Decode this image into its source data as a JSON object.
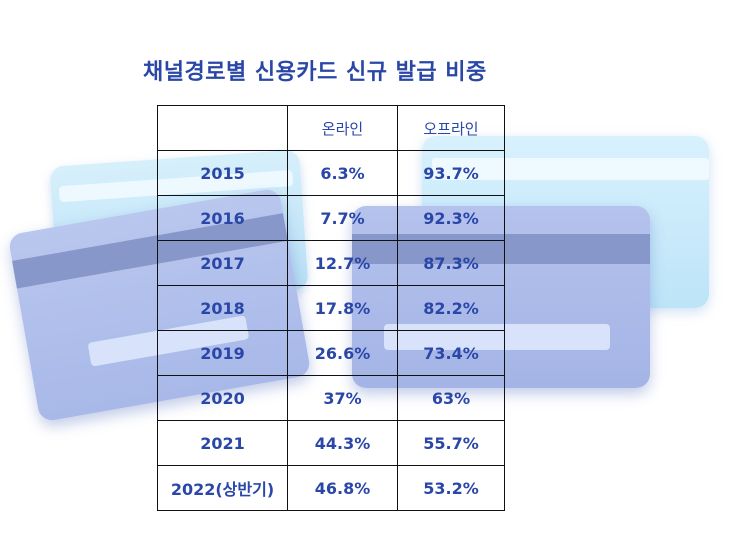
{
  "chart_data": {
    "type": "table",
    "title": "채널경로별 신용카드 신규 발급 비중",
    "columns": [
      "",
      "온라인",
      "오프라인"
    ],
    "rows": [
      {
        "year": "2015",
        "online": "6.3%",
        "offline": "93.7%"
      },
      {
        "year": "2016",
        "online": "7.7%",
        "offline": "92.3%"
      },
      {
        "year": "2017",
        "online": "12.7%",
        "offline": "87.3%"
      },
      {
        "year": "2018",
        "online": "17.8%",
        "offline": "82.2%"
      },
      {
        "year": "2019",
        "online": "26.6%",
        "offline": "73.4%"
      },
      {
        "year": "2020",
        "online": "37%",
        "offline": "63%"
      },
      {
        "year": "2021",
        "online": "44.3%",
        "offline": "55.7%"
      },
      {
        "year": "2022(상반기)",
        "online": "46.8%",
        "offline": "53.2%"
      }
    ],
    "colors": {
      "text": "#2a47a8",
      "border": "#111111"
    }
  }
}
